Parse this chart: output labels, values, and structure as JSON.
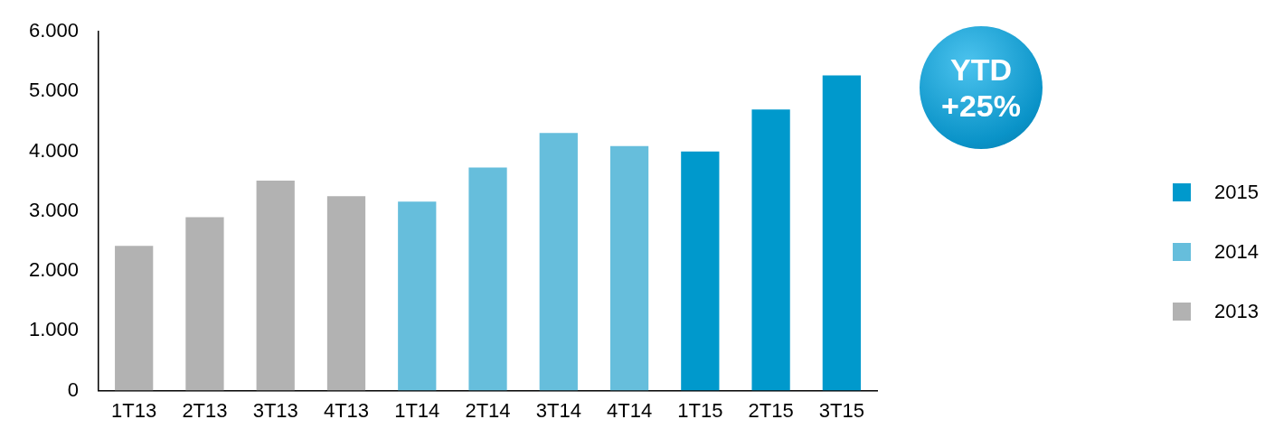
{
  "chart_data": {
    "type": "bar",
    "stacked": true,
    "categories": [
      "1T13",
      "2T13",
      "3T13",
      "4T13",
      "1T14",
      "2T14",
      "3T14",
      "4T14",
      "1T15",
      "2T15",
      "3T15"
    ],
    "series": [
      {
        "name": "2013",
        "color": "#b2b2b2",
        "values": [
          2420,
          2900,
          3510,
          3250,
          null,
          null,
          null,
          null,
          null,
          null,
          null
        ]
      },
      {
        "name": "2014",
        "color": "#66bedc",
        "values": [
          null,
          null,
          null,
          null,
          3160,
          3730,
          4310,
          4090,
          null,
          null,
          null
        ]
      },
      {
        "name": "2015",
        "color": "#0099cc",
        "values": [
          null,
          null,
          null,
          null,
          null,
          null,
          null,
          null,
          4000,
          4700,
          5270
        ]
      }
    ],
    "ylim": [
      0,
      6000
    ],
    "yticks": [
      {
        "value": 0,
        "label": "0"
      },
      {
        "value": 1000,
        "label": "1.000"
      },
      {
        "value": 2000,
        "label": "2.000"
      },
      {
        "value": 3000,
        "label": "3.000"
      },
      {
        "value": 4000,
        "label": "4.000"
      },
      {
        "value": 5000,
        "label": "5.000"
      },
      {
        "value": 6000,
        "label": "6.000"
      }
    ],
    "grid": false,
    "legend": "right",
    "annotations": [
      "YTD +25%"
    ]
  }
}
